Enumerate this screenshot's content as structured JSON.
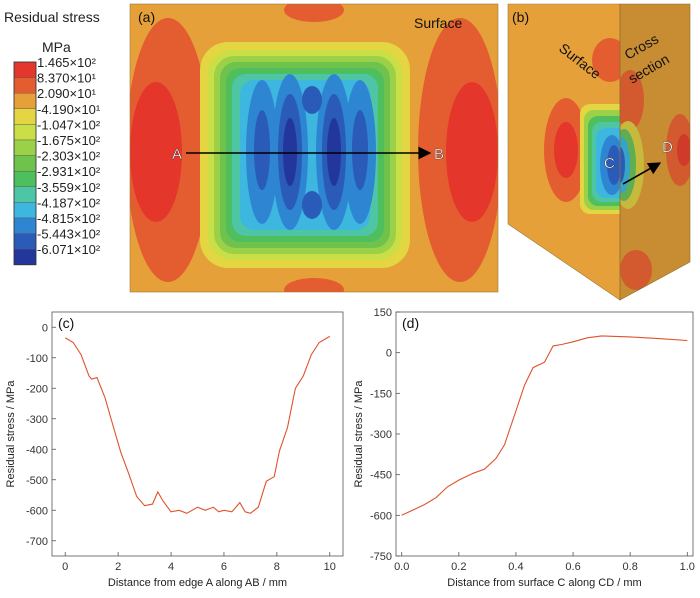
{
  "legend": {
    "title": "Residual stress",
    "unit": "MPa",
    "levels": [
      {
        "label": "1.465×10²",
        "color": "#e5362b"
      },
      {
        "label": "8.370×10¹",
        "color": "#e35d30"
      },
      {
        "label": "2.090×10¹",
        "color": "#e6a03a"
      },
      {
        "label": "-4.190×10¹",
        "color": "#e3d642"
      },
      {
        "label": "-1.047×10²",
        "color": "#c9df45"
      },
      {
        "label": "-1.675×10²",
        "color": "#9bd148"
      },
      {
        "label": "-2.303×10²",
        "color": "#6fc24c"
      },
      {
        "label": "-2.931×10²",
        "color": "#4fbf5e"
      },
      {
        "label": "-3.559×10²",
        "color": "#4ec6a6"
      },
      {
        "label": "-4.187×10²",
        "color": "#3db6e0"
      },
      {
        "label": "-4.815×10²",
        "color": "#2e86d2"
      },
      {
        "label": "-5.443×10²",
        "color": "#2a5bb8"
      },
      {
        "label": "-6.071×10²",
        "color": "#22369c"
      }
    ]
  },
  "map_a": {
    "panel": "(a)",
    "surface_label": "Surface",
    "point_a": "A",
    "point_b": "B"
  },
  "map_b": {
    "panel": "(b)",
    "surface_label": "Surface",
    "cross_label_1": "Cross",
    "cross_label_2": "section",
    "point_c": "C",
    "point_d": "D"
  },
  "chart_data": [
    {
      "type": "line",
      "panel": "(c)",
      "xlabel": "Distance from edge A along AB / mm",
      "ylabel": "Residual stress / MPa",
      "xlim": [
        -0.5,
        10.5
      ],
      "ylim": [
        -750,
        50
      ],
      "xticks": [
        0,
        2,
        4,
        6,
        8,
        10
      ],
      "yticks": [
        0,
        -100,
        -200,
        -300,
        -400,
        -500,
        -600,
        -700
      ],
      "line_color": "#e0522a",
      "x": [
        0,
        0.3,
        0.6,
        0.9,
        1.0,
        1.2,
        1.5,
        1.8,
        2.1,
        2.4,
        2.7,
        3.0,
        3.3,
        3.5,
        3.7,
        4.0,
        4.3,
        4.6,
        5.0,
        5.3,
        5.6,
        5.8,
        6.0,
        6.3,
        6.6,
        6.8,
        7.0,
        7.3,
        7.6,
        7.9,
        8.1,
        8.4,
        8.7,
        9.0,
        9.3,
        9.6,
        10.0
      ],
      "y": [
        -35,
        -50,
        -90,
        -160,
        -170,
        -165,
        -230,
        -320,
        -410,
        -480,
        -555,
        -585,
        -580,
        -540,
        -570,
        -605,
        -600,
        -610,
        -590,
        -600,
        -590,
        -605,
        -600,
        -605,
        -575,
        -605,
        -610,
        -590,
        -505,
        -490,
        -405,
        -330,
        -200,
        -160,
        -90,
        -50,
        -30
      ]
    },
    {
      "type": "line",
      "panel": "(d)",
      "xlabel": "Distance from surface C along CD / mm",
      "ylabel": "Residual stress / MPa",
      "xlim": [
        -0.02,
        1.02
      ],
      "ylim": [
        -750,
        150
      ],
      "xticks": [
        "0.0",
        "0.2",
        "0.4",
        "0.6",
        "0.8",
        "1.0"
      ],
      "yticks": [
        150,
        0,
        -150,
        -300,
        -450,
        -600,
        -750
      ],
      "line_color": "#e0522a",
      "x": [
        0.0,
        0.02,
        0.05,
        0.08,
        0.12,
        0.16,
        0.2,
        0.25,
        0.29,
        0.33,
        0.36,
        0.4,
        0.43,
        0.46,
        0.5,
        0.53,
        0.56,
        0.6,
        0.65,
        0.7,
        0.8,
        0.9,
        1.0
      ],
      "y": [
        -600,
        -590,
        -575,
        -560,
        -535,
        -495,
        -470,
        -445,
        -430,
        -390,
        -340,
        -215,
        -120,
        -55,
        -35,
        25,
        30,
        40,
        55,
        62,
        58,
        52,
        45
      ]
    }
  ]
}
